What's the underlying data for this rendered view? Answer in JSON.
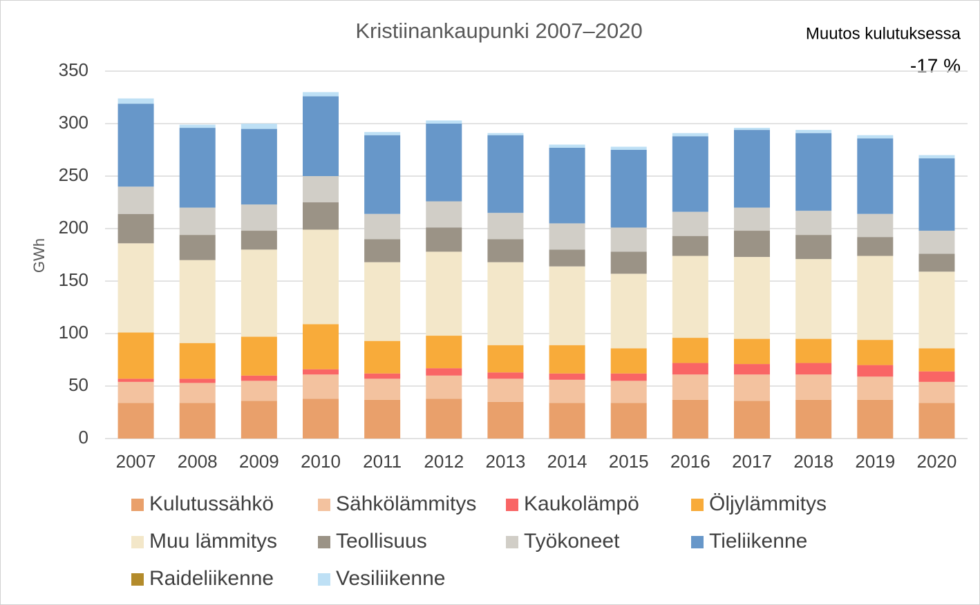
{
  "chart_data": {
    "type": "stacked_bar",
    "title": "Kristiinankaupunki 2007–2020",
    "annotations": [
      "Muutos kulutuksessa",
      "-17 %"
    ],
    "y_label": "GWh",
    "categories": [
      "2007",
      "2008",
      "2009",
      "2010",
      "2011",
      "2012",
      "2013",
      "2014",
      "2015",
      "2016",
      "2017",
      "2018",
      "2019",
      "2020"
    ],
    "ylim": [
      0,
      350
    ],
    "yticks": [
      0,
      50,
      100,
      150,
      200,
      250,
      300,
      350
    ],
    "grid": true,
    "series": [
      {
        "name": "Kulutussähkö",
        "color": "#e9a06b",
        "values": [
          34,
          34,
          36,
          38,
          37,
          38,
          35,
          34,
          34,
          37,
          36,
          37,
          37,
          34
        ]
      },
      {
        "name": "Sähkölämmitys",
        "color": "#f3c29f",
        "values": [
          20,
          19,
          19,
          23,
          20,
          22,
          22,
          22,
          21,
          24,
          25,
          24,
          22,
          20
        ]
      },
      {
        "name": "Kaukolämpö",
        "color": "#f96565",
        "values": [
          3,
          4,
          5,
          5,
          5,
          7,
          6,
          6,
          7,
          11,
          10,
          11,
          11,
          10
        ]
      },
      {
        "name": "Öljylämmitys",
        "color": "#f8ab3a",
        "values": [
          44,
          34,
          37,
          43,
          31,
          31,
          26,
          27,
          24,
          24,
          24,
          23,
          24,
          22
        ]
      },
      {
        "name": "Muu lämmitys",
        "color": "#f3e7c9",
        "values": [
          85,
          79,
          83,
          90,
          75,
          80,
          79,
          75,
          71,
          78,
          78,
          76,
          80,
          73
        ]
      },
      {
        "name": "Teollisuus",
        "color": "#9b9386",
        "values": [
          28,
          24,
          18,
          26,
          22,
          23,
          22,
          16,
          21,
          19,
          25,
          23,
          18,
          17
        ]
      },
      {
        "name": "Työkoneet",
        "color": "#d1cec7",
        "values": [
          26,
          26,
          25,
          25,
          24,
          25,
          25,
          25,
          23,
          23,
          22,
          23,
          22,
          22
        ]
      },
      {
        "name": "Tieliikenne",
        "color": "#6797c9",
        "values": [
          79,
          76,
          72,
          76,
          75,
          74,
          74,
          72,
          74,
          72,
          74,
          74,
          72,
          69
        ]
      },
      {
        "name": "Raideliikenne",
        "color": "#b38b2b",
        "values": [
          0,
          0,
          0,
          0,
          0,
          0,
          0,
          0,
          0,
          0,
          0,
          0,
          0,
          0
        ]
      },
      {
        "name": "Vesiliikenne",
        "color": "#bee0f5",
        "values": [
          5,
          3,
          5,
          4,
          3,
          3,
          2,
          3,
          3,
          3,
          2,
          3,
          3,
          3
        ]
      }
    ]
  }
}
